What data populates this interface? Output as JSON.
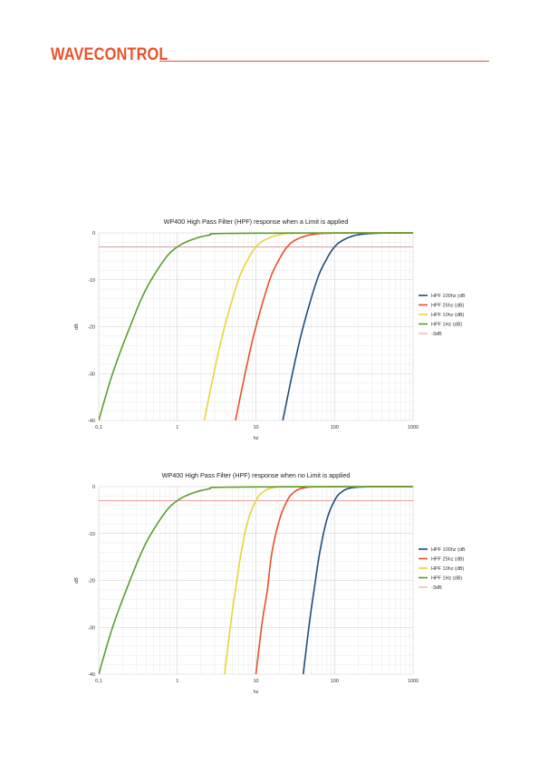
{
  "header": {
    "brand": "WAVECONTROL"
  },
  "colors": {
    "brand": "#e8532c",
    "hpf100": "#1f4e79",
    "hpf25": "#e8502a",
    "hpf10": "#e8d43a",
    "hpf1": "#5b9e2d",
    "ref": "#d97f7f"
  },
  "chart_data": [
    {
      "type": "line",
      "title": "WP400 High Pass Filter (HPF) response when a Limit is applied",
      "xlabel": "hz",
      "ylabel": "dB",
      "xscale": "log",
      "xlim": [
        0.1,
        1000
      ],
      "ylim": [
        -40,
        0
      ],
      "xticks": [
        "0,1",
        "1",
        "10",
        "100",
        "1000"
      ],
      "yticks": [
        "0",
        "-10",
        "-20",
        "-30",
        "-40"
      ],
      "grid": true,
      "legend_position": "right",
      "series": [
        {
          "name": "HPF 100hz (dB",
          "color": "#1f4e79",
          "x": [
            22,
            30,
            40,
            60,
            80,
            100,
            130,
            200,
            400,
            1000
          ],
          "y": [
            -40,
            -29,
            -20,
            -10,
            -5.5,
            -3,
            -1.5,
            -0.4,
            -0.05,
            0
          ]
        },
        {
          "name": "HPF 25hz (dB)",
          "color": "#e8502a",
          "x": [
            5.5,
            7.5,
            10,
            15,
            20,
            25,
            32,
            50,
            100,
            1000
          ],
          "y": [
            -40,
            -29,
            -20,
            -10,
            -5.5,
            -3,
            -1.5,
            -0.4,
            -0.05,
            0
          ]
        },
        {
          "name": "HPF 10hz (dB)",
          "color": "#e8d43a",
          "x": [
            2.2,
            3,
            4,
            6,
            8,
            10,
            13,
            20,
            40,
            1000
          ],
          "y": [
            -40,
            -29,
            -20,
            -10,
            -5.5,
            -3,
            -1.5,
            -0.4,
            -0.05,
            0
          ]
        },
        {
          "name": "HPF 1Hz (dB)",
          "color": "#5b9e2d",
          "x": [
            0.1,
            0.15,
            0.25,
            0.4,
            0.7,
            1,
            1.5,
            2.5,
            5,
            1000
          ],
          "y": [
            -40,
            -30,
            -20,
            -12,
            -5.5,
            -3,
            -1.5,
            -0.5,
            -0.1,
            0
          ]
        },
        {
          "name": "-3dB",
          "color": "#d97f7f",
          "x": [
            0.1,
            1000
          ],
          "y": [
            -3,
            -3
          ]
        }
      ]
    },
    {
      "type": "line",
      "title": "WP400 High Pass Filter (HPF) response when no Limit is applied",
      "xlabel": "hz",
      "ylabel": "dB",
      "xscale": "log",
      "xlim": [
        0.1,
        1000
      ],
      "ylim": [
        -40,
        0
      ],
      "xticks": [
        "0,1",
        "1",
        "10",
        "100",
        "1000"
      ],
      "yticks": [
        "0",
        "-10",
        "-20",
        "-30",
        "-40"
      ],
      "grid": true,
      "legend_position": "right",
      "series": [
        {
          "name": "HPF 100hz (dB",
          "color": "#1f4e79",
          "x": [
            40,
            48,
            55,
            65,
            80,
            100,
            120,
            160,
            300,
            1000
          ],
          "y": [
            -40,
            -29,
            -22,
            -14,
            -7,
            -3,
            -1.3,
            -0.3,
            -0.02,
            0
          ]
        },
        {
          "name": "HPF 25hz (dB)",
          "color": "#e8502a",
          "x": [
            10,
            12,
            14,
            16,
            20,
            25,
            30,
            40,
            75,
            1000
          ],
          "y": [
            -40,
            -29,
            -22,
            -14,
            -7,
            -3,
            -1.3,
            -0.3,
            -0.02,
            0
          ]
        },
        {
          "name": "HPF 10hz (dB)",
          "color": "#e8d43a",
          "x": [
            4,
            4.8,
            5.5,
            6.5,
            8,
            10,
            12,
            16,
            30,
            1000
          ],
          "y": [
            -40,
            -29,
            -22,
            -14,
            -7,
            -3,
            -1.3,
            -0.3,
            -0.02,
            0
          ]
        },
        {
          "name": "HPF 1Hz (dB)",
          "color": "#5b9e2d",
          "x": [
            0.1,
            0.15,
            0.25,
            0.4,
            0.7,
            1,
            1.5,
            2.5,
            5,
            1000
          ],
          "y": [
            -40,
            -30,
            -20,
            -12,
            -5.5,
            -3,
            -1.5,
            -0.5,
            -0.1,
            0
          ]
        },
        {
          "name": "-3dB",
          "color": "#d97f7f",
          "x": [
            0.1,
            1000
          ],
          "y": [
            -3,
            -3
          ]
        }
      ]
    }
  ]
}
